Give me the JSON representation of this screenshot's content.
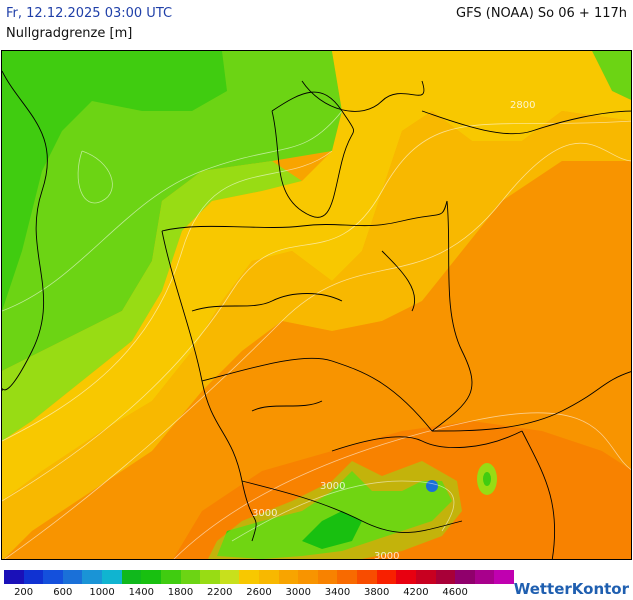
{
  "header": {
    "datetime": "Fr, 12.12.2025 03:00 UTC",
    "model_run": "GFS (NOAA) So 06 + 117h",
    "parameter": "Nullgradgrenze [m]"
  },
  "map": {
    "contour_labels": [
      "2800",
      "3000",
      "3000",
      "3000"
    ]
  },
  "legend": {
    "colors": [
      "#1a10b8",
      "#1032d2",
      "#1450dc",
      "#1a70d8",
      "#1a94d6",
      "#10b4d0",
      "#10b81c",
      "#18c010",
      "#40cc10",
      "#6cd414",
      "#98dc14",
      "#c8e01c",
      "#f8c800",
      "#f8b800",
      "#f8a400",
      "#f89400",
      "#f88200",
      "#f86a00",
      "#f84c00",
      "#f82000",
      "#e80010",
      "#c80020",
      "#a80038",
      "#90006c",
      "#a8008c",
      "#c000b0"
    ],
    "labels": [
      "200",
      "600",
      "1000",
      "1400",
      "1800",
      "2200",
      "2600",
      "3000",
      "3400",
      "3800",
      "4200",
      "4600"
    ]
  },
  "brand": {
    "name": "WetterKontor"
  }
}
